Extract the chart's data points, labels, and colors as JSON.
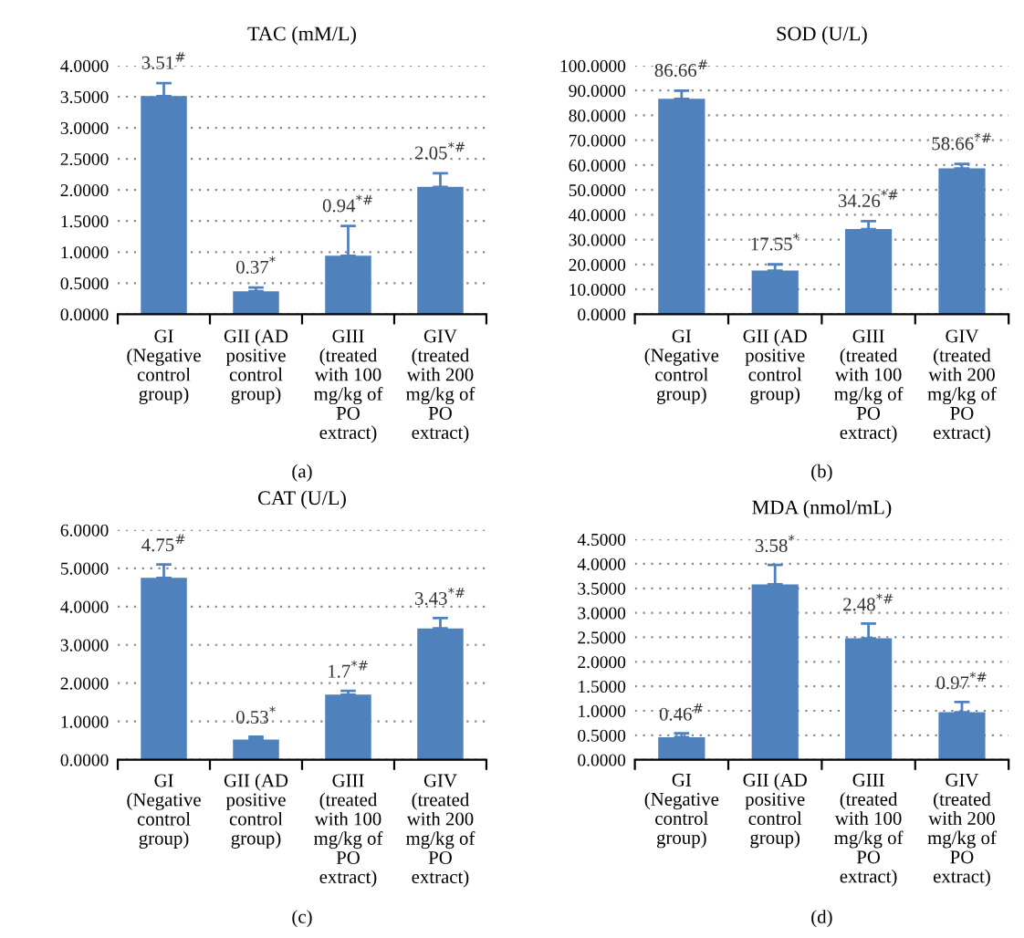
{
  "chart_data": [
    {
      "type": "bar",
      "title": "TAC (mM/L)",
      "categories": [
        "GI (Negative control group)",
        "GII (AD positive control group)",
        "GIII (treated with 100 mg/kg of PO extract)",
        "GIV (treated with 200 mg/kg of PO extract)"
      ],
      "values": [
        3.51,
        0.37,
        0.94,
        2.05
      ],
      "errors": [
        0.21,
        0.06,
        0.48,
        0.22
      ],
      "value_labels": [
        "3.51$^{#}$",
        "0.37$^{*}$",
        "0.94$^{*#}$",
        "2.05$^{*#}$"
      ],
      "color": "#4f81bd",
      "ylim": [
        0,
        4
      ],
      "yticks": [
        {
          "value": 0,
          "label": "0.0000"
        },
        {
          "value": 0.5,
          "label": "0.5000"
        },
        {
          "value": 1,
          "label": "1.0000"
        },
        {
          "value": 1.5,
          "label": "1.5000"
        },
        {
          "value": 2,
          "label": "2.0000"
        },
        {
          "value": 2.5,
          "label": "2.5000"
        },
        {
          "value": 3,
          "label": "3.0000"
        },
        {
          "value": 3.5,
          "label": "3.5000"
        },
        {
          "value": 4,
          "label": "4.0000"
        }
      ],
      "grid": "y",
      "annotations": [
        "(a)"
      ]
    },
    {
      "type": "bar",
      "title": "SOD (U/L)",
      "categories": [
        "GI (Negative control group)",
        "GII (AD positive control group)",
        "GIII (treated with 100 mg/kg of PO extract)",
        "GIV (treated with 200 mg/kg of PO extract)"
      ],
      "values": [
        86.66,
        17.55,
        34.26,
        58.66
      ],
      "errors": [
        3.3,
        2.5,
        3.2,
        1.8
      ],
      "value_labels": [
        "86.66$^{#}$",
        "17.55$^{*}$",
        "34.26$^{*#}$",
        "58.66$^{*#}$"
      ],
      "color": "#4f81bd",
      "ylim": [
        0,
        100
      ],
      "yticks": [
        {
          "value": 0,
          "label": "0.0000"
        },
        {
          "value": 10,
          "label": "10.0000"
        },
        {
          "value": 20,
          "label": "20.0000"
        },
        {
          "value": 30,
          "label": "30.0000"
        },
        {
          "value": 40,
          "label": "40.0000"
        },
        {
          "value": 50,
          "label": "50.0000"
        },
        {
          "value": 60,
          "label": "60.0000"
        },
        {
          "value": 70,
          "label": "70.0000"
        },
        {
          "value": 80,
          "label": "80.0000"
        },
        {
          "value": 90,
          "label": "90.0000"
        },
        {
          "value": 100,
          "label": "100.0000"
        }
      ],
      "grid": "y",
      "annotations": [
        "(b)"
      ]
    },
    {
      "type": "bar",
      "title": "CAT (U/L)",
      "categories": [
        "GI (Negative control group)",
        "GII (AD positive control group)",
        "GIII (treated with 100 mg/kg of PO extract)",
        "GIV (treated with 200 mg/kg of PO extract)"
      ],
      "values": [
        4.75,
        0.53,
        1.7,
        3.43
      ],
      "errors": [
        0.35,
        0.07,
        0.1,
        0.27
      ],
      "value_labels": [
        "4.75$^{#}$",
        "0.53$^{*}$",
        "1.7$^{*#}$",
        "3.43$^{*#}$"
      ],
      "color": "#4f81bd",
      "ylim": [
        0,
        6
      ],
      "yticks": [
        {
          "value": 0,
          "label": "0.0000"
        },
        {
          "value": 1,
          "label": "1.0000"
        },
        {
          "value": 2,
          "label": "2.0000"
        },
        {
          "value": 3,
          "label": "3.0000"
        },
        {
          "value": 4,
          "label": "4.0000"
        },
        {
          "value": 5,
          "label": "5.0000"
        },
        {
          "value": 6,
          "label": "6.0000"
        }
      ],
      "grid": "y",
      "annotations": [
        "(c)"
      ]
    },
    {
      "type": "bar",
      "title": "MDA (nmol/mL)",
      "categories": [
        "GI (Negative control group)",
        "GII (AD positive control group)",
        "GIII (treated with 100 mg/kg of PO extract)",
        "GIV (treated with 200 mg/kg of PO extract)"
      ],
      "values": [
        0.46,
        3.58,
        2.48,
        0.97
      ],
      "errors": [
        0.08,
        0.4,
        0.3,
        0.21
      ],
      "value_labels": [
        "0.46$^{#}$",
        "3.58$^{*}$",
        "2.48$^{*#}$",
        "0.97$^{*#}$"
      ],
      "color": "#4f81bd",
      "ylim": [
        0,
        4.5
      ],
      "yticks": [
        {
          "value": 0,
          "label": "0.0000"
        },
        {
          "value": 0.5,
          "label": "0.5000"
        },
        {
          "value": 1,
          "label": "1.0000"
        },
        {
          "value": 1.5,
          "label": "1.5000"
        },
        {
          "value": 2,
          "label": "2.0000"
        },
        {
          "value": 2.5,
          "label": "2.5000"
        },
        {
          "value": 3,
          "label": "3.0000"
        },
        {
          "value": 3.5,
          "label": "3.5000"
        },
        {
          "value": 4,
          "label": "4.0000"
        },
        {
          "value": 4.5,
          "label": "4.5000"
        }
      ],
      "grid": "y",
      "annotations": [
        "(d)"
      ]
    }
  ]
}
